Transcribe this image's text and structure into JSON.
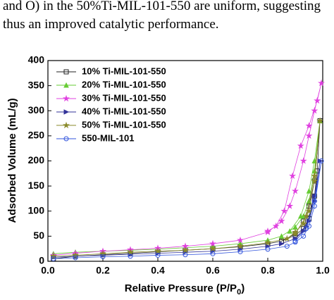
{
  "text_lines": [
    "and O) in the 50%Ti-MIL-101-550 are uniform, suggesting",
    "thus an improved catalytic performance."
  ],
  "chart_data": {
    "type": "line",
    "x_label": "Relative Pressure (P/P",
    "x_label_subscript": "0",
    "x_label_end": ")",
    "y_label": "Adsorbed Volume (mL/g)",
    "xlim": [
      0,
      1
    ],
    "xticks": [
      {
        "value": 0,
        "label": "0.0"
      },
      0.2,
      0.4,
      0.6,
      0.8,
      {
        "value": 1,
        "label": "1.0"
      }
    ],
    "ylim": [
      0,
      400
    ],
    "yticks": [
      0,
      50,
      100,
      150,
      200,
      250,
      300,
      350,
      400
    ],
    "legend": "upper-left",
    "series": [
      {
        "name": "10% Ti-MIL-101-550",
        "color": "#222222",
        "marker": "square",
        "x": [
          0.02,
          0.1,
          0.2,
          0.3,
          0.4,
          0.5,
          0.6,
          0.7,
          0.8,
          0.85,
          0.9,
          0.93,
          0.95,
          0.97,
          0.98,
          0.99,
          0.97,
          0.95,
          0.93,
          0.9,
          0.85
        ],
        "values": [
          5,
          10,
          13,
          16,
          19,
          22,
          25,
          29,
          35,
          40,
          52,
          65,
          85,
          130,
          180,
          280,
          160,
          110,
          80,
          55,
          40
        ]
      },
      {
        "name": "20% Ti-MIL-101-550",
        "color": "#66cc33",
        "marker": "triangle",
        "x": [
          0.02,
          0.1,
          0.2,
          0.3,
          0.4,
          0.5,
          0.6,
          0.7,
          0.8,
          0.85,
          0.9,
          0.93,
          0.95,
          0.97,
          0.99,
          0.97,
          0.95,
          0.92,
          0.88
        ],
        "values": [
          15,
          18,
          20,
          22,
          24,
          27,
          30,
          35,
          42,
          50,
          68,
          90,
          120,
          180,
          280,
          200,
          140,
          90,
          60
        ]
      },
      {
        "name": "30% Ti-MIL-101-550",
        "color": "#e040e0",
        "marker": "star",
        "x": [
          0.02,
          0.1,
          0.2,
          0.3,
          0.4,
          0.5,
          0.6,
          0.7,
          0.8,
          0.85,
          0.88,
          0.9,
          0.93,
          0.95,
          0.97,
          0.995,
          0.98,
          0.95,
          0.92,
          0.89,
          0.86,
          0.83,
          0.8
        ],
        "values": [
          12,
          16,
          20,
          23,
          26,
          30,
          35,
          42,
          58,
          80,
          110,
          140,
          200,
          250,
          300,
          355,
          320,
          270,
          230,
          170,
          100,
          70,
          60
        ]
      },
      {
        "name": "40% Ti-MIL-101-550",
        "color": "#333399",
        "marker": "triangle-right",
        "x": [
          0.02,
          0.1,
          0.2,
          0.3,
          0.4,
          0.5,
          0.6,
          0.7,
          0.8,
          0.85,
          0.9,
          0.93,
          0.95,
          0.97,
          0.99,
          0.97,
          0.94,
          0.9
        ],
        "values": [
          8,
          10,
          12,
          14,
          16,
          18,
          20,
          24,
          30,
          35,
          45,
          60,
          80,
          120,
          200,
          130,
          70,
          45
        ]
      },
      {
        "name": "50% Ti-MIL-101-550",
        "color": "#8a8a2a",
        "marker": "star",
        "x": [
          0.02,
          0.1,
          0.2,
          0.3,
          0.4,
          0.5,
          0.6,
          0.7,
          0.8,
          0.87,
          0.9,
          0.93,
          0.95,
          0.97,
          0.99,
          0.97,
          0.94,
          0.9
        ],
        "values": [
          10,
          12,
          15,
          18,
          20,
          22,
          25,
          30,
          37,
          45,
          58,
          75,
          100,
          160,
          280,
          170,
          90,
          55
        ]
      },
      {
        "name": "550-MIL-101",
        "color": "#3355dd",
        "marker": "circle",
        "x": [
          0.02,
          0.1,
          0.2,
          0.3,
          0.4,
          0.5,
          0.6,
          0.7,
          0.8,
          0.87,
          0.9,
          0.93,
          0.95,
          0.97,
          0.995,
          0.97,
          0.94,
          0.9
        ],
        "values": [
          5,
          7,
          9,
          10,
          12,
          13,
          15,
          19,
          24,
          30,
          38,
          50,
          70,
          110,
          200,
          120,
          65,
          40
        ]
      }
    ]
  }
}
